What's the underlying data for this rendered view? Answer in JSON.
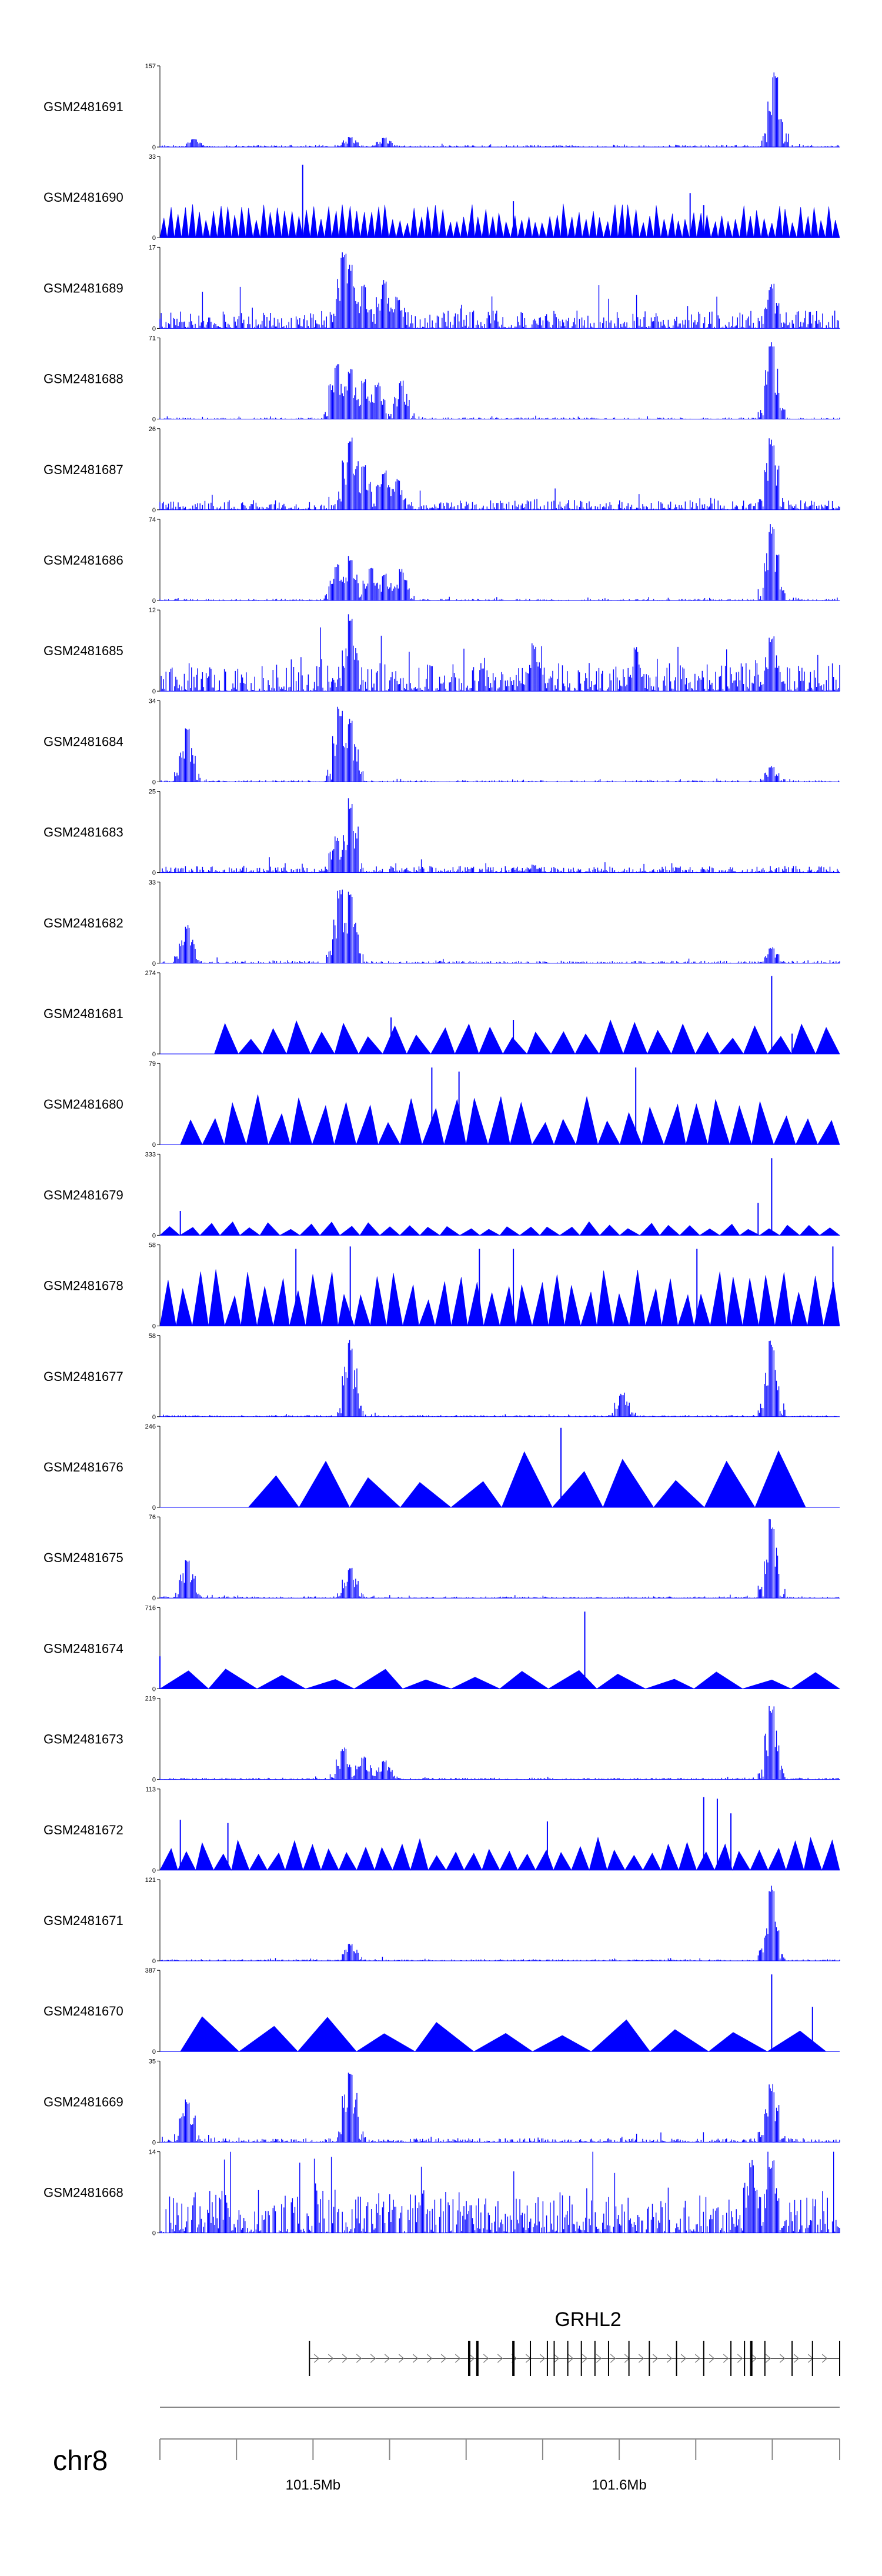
{
  "chart_data": {
    "type": "area",
    "title": "",
    "chromosome": "chr8",
    "region_start_mb": 101.45,
    "region_end_mb": 101.672,
    "fill_color": "#0000ff",
    "tracks": [
      {
        "name": "GSM2481691",
        "max": "157",
        "min": "0",
        "pattern": "noise",
        "base": 0.025,
        "peaks": [
          [
            0.05,
            0.1
          ],
          [
            0.28,
            0.13
          ],
          [
            0.33,
            0.12
          ],
          [
            0.905,
            0.98
          ]
        ]
      },
      {
        "name": "GSM2481690",
        "max": "33",
        "min": "0",
        "pattern": "sparse",
        "count": 95,
        "height": 0.3,
        "base": 0.05,
        "peaks": [
          [
            0.21,
            0.9
          ],
          [
            0.52,
            0.45
          ],
          [
            0.78,
            0.55
          ],
          [
            0.8,
            0.4
          ]
        ]
      },
      {
        "name": "GSM2481689",
        "max": "17",
        "min": "0",
        "pattern": "noise",
        "base": 0.22,
        "peaks": [
          [
            0.27,
            0.95
          ],
          [
            0.28,
            0.8
          ],
          [
            0.3,
            0.55
          ],
          [
            0.33,
            0.6
          ],
          [
            0.35,
            0.4
          ],
          [
            0.9,
            0.55
          ]
        ]
      },
      {
        "name": "GSM2481688",
        "max": "71",
        "min": "0",
        "pattern": "noise",
        "base": 0.02,
        "peaks": [
          [
            0.26,
            0.68
          ],
          [
            0.28,
            0.62
          ],
          [
            0.3,
            0.5
          ],
          [
            0.32,
            0.45
          ],
          [
            0.355,
            0.48
          ],
          [
            0.9,
            0.96
          ]
        ]
      },
      {
        "name": "GSM2481687",
        "max": "26",
        "min": "0",
        "pattern": "noise",
        "base": 0.12,
        "peaks": [
          [
            0.28,
            0.95
          ],
          [
            0.3,
            0.6
          ],
          [
            0.33,
            0.5
          ],
          [
            0.35,
            0.4
          ],
          [
            0.9,
            0.9
          ]
        ]
      },
      {
        "name": "GSM2481686",
        "max": "74",
        "min": "0",
        "pattern": "noise",
        "base": 0.02,
        "peaks": [
          [
            0.26,
            0.45
          ],
          [
            0.28,
            0.55
          ],
          [
            0.31,
            0.4
          ],
          [
            0.33,
            0.35
          ],
          [
            0.355,
            0.4
          ],
          [
            0.9,
            0.95
          ]
        ]
      },
      {
        "name": "GSM2481685",
        "max": "12",
        "min": "0",
        "pattern": "noise",
        "base": 0.35,
        "peaks": [
          [
            0.28,
            0.95
          ],
          [
            0.55,
            0.6
          ],
          [
            0.7,
            0.55
          ],
          [
            0.9,
            0.7
          ]
        ]
      },
      {
        "name": "GSM2481684",
        "max": "34",
        "min": "0",
        "pattern": "noise",
        "base": 0.02,
        "peaks": [
          [
            0.04,
            0.68
          ],
          [
            0.265,
            0.95
          ],
          [
            0.28,
            0.82
          ],
          [
            0.9,
            0.2
          ]
        ]
      },
      {
        "name": "GSM2481683",
        "max": "25",
        "min": "0",
        "pattern": "noise",
        "base": 0.08,
        "peaks": [
          [
            0.26,
            0.45
          ],
          [
            0.28,
            0.92
          ],
          [
            0.55,
            0.1
          ]
        ]
      },
      {
        "name": "GSM2481682",
        "max": "33",
        "min": "0",
        "pattern": "noise",
        "base": 0.03,
        "peaks": [
          [
            0.04,
            0.5
          ],
          [
            0.265,
            0.93
          ],
          [
            0.28,
            0.92
          ],
          [
            0.9,
            0.2
          ]
        ]
      },
      {
        "name": "GSM2481681",
        "max": "274",
        "min": "0",
        "pattern": "sparse",
        "count": 26,
        "height": 0.3,
        "base": 0.02,
        "start": 0.08,
        "peaks": [
          [
            0.34,
            0.45
          ],
          [
            0.52,
            0.42
          ],
          [
            0.9,
            0.96
          ],
          [
            0.93,
            0.25
          ]
        ]
      },
      {
        "name": "GSM2481680",
        "max": "79",
        "min": "0",
        "pattern": "sparse",
        "count": 30,
        "height": 0.45,
        "base": 0.03,
        "start": 0.03,
        "peaks": [
          [
            0.4,
            0.95
          ],
          [
            0.44,
            0.9
          ],
          [
            0.7,
            0.95
          ]
        ]
      },
      {
        "name": "GSM2481679",
        "max": "333",
        "min": "0",
        "pattern": "sparse",
        "count": 34,
        "height": 0.12,
        "base": 0.02,
        "peaks": [
          [
            0.9,
            0.95
          ],
          [
            0.03,
            0.3
          ],
          [
            0.88,
            0.4
          ]
        ]
      },
      {
        "name": "GSM2481678",
        "max": "58",
        "min": "0",
        "pattern": "sparse",
        "count": 42,
        "height": 0.5,
        "base": 0.03,
        "peaks": [
          [
            0.2,
            0.95
          ],
          [
            0.28,
            0.98
          ],
          [
            0.47,
            0.95
          ],
          [
            0.52,
            0.95
          ],
          [
            0.79,
            0.95
          ],
          [
            0.99,
            0.98
          ]
        ]
      },
      {
        "name": "GSM2481677",
        "max": "58",
        "min": "0",
        "pattern": "noise",
        "base": 0.02,
        "peaks": [
          [
            0.28,
            0.95
          ],
          [
            0.68,
            0.3
          ],
          [
            0.9,
            0.95
          ]
        ]
      },
      {
        "name": "GSM2481676",
        "max": "246",
        "min": "0",
        "pattern": "sparse",
        "count": 11,
        "height": 0.5,
        "base": 0.01,
        "start": 0.13,
        "end": 0.95,
        "peaks": [
          [
            0.59,
            0.98
          ]
        ]
      },
      {
        "name": "GSM2481675",
        "max": "76",
        "min": "0",
        "pattern": "noise",
        "base": 0.02,
        "peaks": [
          [
            0.04,
            0.5
          ],
          [
            0.28,
            0.38
          ],
          [
            0.9,
            0.98
          ]
        ]
      },
      {
        "name": "GSM2481674",
        "max": "716",
        "min": "0",
        "pattern": "sparse",
        "count": 14,
        "height": 0.18,
        "base": 0.01,
        "peaks": [
          [
            0.0,
            0.4
          ],
          [
            0.625,
            0.95
          ]
        ]
      },
      {
        "name": "GSM2481673",
        "max": "219",
        "min": "0",
        "pattern": "noise",
        "base": 0.02,
        "peaks": [
          [
            0.27,
            0.4
          ],
          [
            0.3,
            0.3
          ],
          [
            0.33,
            0.25
          ],
          [
            0.9,
            0.95
          ]
        ]
      },
      {
        "name": "GSM2481672",
        "max": "113",
        "min": "0",
        "pattern": "sparse",
        "count": 38,
        "height": 0.3,
        "base": 0.02,
        "peaks": [
          [
            0.03,
            0.62
          ],
          [
            0.1,
            0.58
          ],
          [
            0.57,
            0.6
          ],
          [
            0.8,
            0.9
          ],
          [
            0.82,
            0.88
          ],
          [
            0.84,
            0.7
          ]
        ]
      },
      {
        "name": "GSM2481671",
        "max": "121",
        "min": "0",
        "pattern": "noise",
        "base": 0.02,
        "peaks": [
          [
            0.28,
            0.22
          ],
          [
            0.9,
            0.95
          ]
        ]
      },
      {
        "name": "GSM2481670",
        "max": "387",
        "min": "0",
        "pattern": "sparse",
        "count": 11,
        "height": 0.32,
        "base": 0.01,
        "start": 0.03,
        "end": 0.98,
        "peaks": [
          [
            0.9,
            0.95
          ],
          [
            0.96,
            0.55
          ]
        ]
      },
      {
        "name": "GSM2481669",
        "max": "35",
        "min": "0",
        "pattern": "noise",
        "base": 0.05,
        "peaks": [
          [
            0.04,
            0.55
          ],
          [
            0.28,
            0.95
          ],
          [
            0.9,
            0.72
          ]
        ]
      },
      {
        "name": "GSM2481668",
        "max": "14",
        "min": "0",
        "pattern": "noise",
        "base": 0.55,
        "peaks": [
          [
            0.87,
            0.95
          ],
          [
            0.9,
            0.9
          ]
        ]
      }
    ],
    "gene": {
      "name": "GRHL2",
      "start_frac": 0.22,
      "end_frac": 1.0,
      "exons_frac": [
        0.22,
        0.455,
        0.467,
        0.52,
        0.545,
        0.57,
        0.58,
        0.6,
        0.62,
        0.64,
        0.66,
        0.69,
        0.72,
        0.76,
        0.8,
        0.84,
        0.86,
        0.87,
        0.89,
        0.93,
        0.96,
        1.0
      ]
    },
    "axis": {
      "chromosome_label": "chr8",
      "ticks_mb": [
        101.45,
        101.475,
        101.5,
        101.525,
        101.55,
        101.575,
        101.6,
        101.625,
        101.65,
        101.672
      ],
      "labeled_ticks": [
        {
          "mb": 101.5,
          "label": "101.5Mb"
        },
        {
          "mb": 101.6,
          "label": "101.6Mb"
        }
      ]
    }
  }
}
